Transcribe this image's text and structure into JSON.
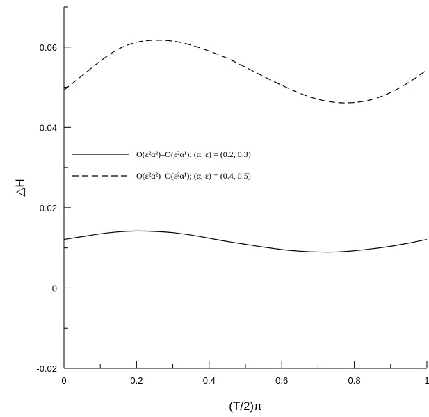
{
  "chart_data": {
    "type": "line",
    "xlabel": "(T/2)π",
    "ylabel": "△H",
    "xlim": [
      0,
      1
    ],
    "ylim": [
      -0.02,
      0.07
    ],
    "x_ticks": [
      0,
      0.2,
      0.4,
      0.6,
      0.8,
      1
    ],
    "x_tick_labels": [
      "0",
      "0.2",
      "0.4",
      "0.6",
      "0.8",
      "1"
    ],
    "y_ticks": [
      -0.02,
      0,
      0.02,
      0.04,
      0.06
    ],
    "y_tick_labels": [
      "-0.02",
      "0",
      "0.02",
      "0.04",
      "0.06"
    ],
    "grid": false,
    "legend_position": "center-left",
    "series": [
      {
        "name": "O(ε²α²)–O(ε²α¹);  (α, ε) = (0.2, 0.3)",
        "style": "solid",
        "color": "#000000",
        "x": [
          0,
          0.05,
          0.1,
          0.15,
          0.2,
          0.25,
          0.3,
          0.35,
          0.4,
          0.45,
          0.5,
          0.55,
          0.6,
          0.65,
          0.7,
          0.75,
          0.8,
          0.85,
          0.9,
          0.95,
          1
        ],
        "y": [
          0.0121,
          0.0128,
          0.0135,
          0.014,
          0.0142,
          0.0141,
          0.0138,
          0.0132,
          0.0124,
          0.0116,
          0.0109,
          0.0102,
          0.0096,
          0.0092,
          0.009,
          0.009,
          0.0093,
          0.0098,
          0.0104,
          0.0112,
          0.0121
        ]
      },
      {
        "name": "O(ε²α²)–O(ε²α¹);  (α, ε) = (0.4, 0.5)",
        "style": "dashed",
        "color": "#000000",
        "x": [
          0,
          0.05,
          0.1,
          0.15,
          0.2,
          0.25,
          0.3,
          0.35,
          0.4,
          0.45,
          0.5,
          0.55,
          0.6,
          0.65,
          0.7,
          0.75,
          0.8,
          0.85,
          0.9,
          0.95,
          1
        ],
        "y": [
          0.0493,
          0.0529,
          0.0565,
          0.0595,
          0.0612,
          0.0617,
          0.0615,
          0.0605,
          0.059,
          0.0572,
          0.055,
          0.0527,
          0.0505,
          0.0485,
          0.047,
          0.0462,
          0.0462,
          0.047,
          0.0487,
          0.0512,
          0.0543
        ]
      }
    ]
  }
}
